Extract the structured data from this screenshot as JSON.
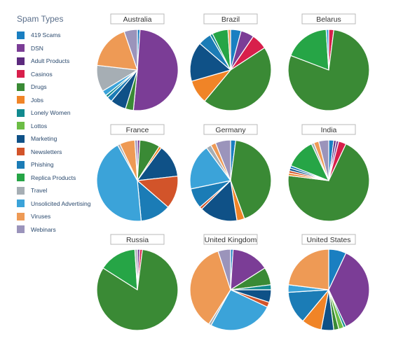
{
  "legend": {
    "title": "Spam Types",
    "items": [
      {
        "label": "419 Scams",
        "color": "#1a7fc1"
      },
      {
        "label": "DSN",
        "color": "#7b3d96"
      },
      {
        "label": "Adult Products",
        "color": "#5c2a7e"
      },
      {
        "label": "Casinos",
        "color": "#d81f4b"
      },
      {
        "label": "Drugs",
        "color": "#3a8a35"
      },
      {
        "label": "Jobs",
        "color": "#f08427"
      },
      {
        "label": "Lonely Women",
        "color": "#128a8f"
      },
      {
        "label": "Lottos",
        "color": "#6cbd45"
      },
      {
        "label": "Marketing",
        "color": "#0f5187"
      },
      {
        "label": "Newsletters",
        "color": "#d2542a"
      },
      {
        "label": "Phishing",
        "color": "#1b7cb6"
      },
      {
        "label": "Replica Products",
        "color": "#26a546"
      },
      {
        "label": "Travel",
        "color": "#a6aeb4"
      },
      {
        "label": "Unsolicited Advertising",
        "color": "#3ba3d9"
      },
      {
        "label": "Viruses",
        "color": "#ee9a55"
      },
      {
        "label": "Webinars",
        "color": "#9b94bb"
      }
    ]
  },
  "chart_data": [
    {
      "type": "pie",
      "title": "Australia",
      "slices": [
        {
          "label": "419 Scams",
          "value": 1
        },
        {
          "label": "DSN",
          "value": 48
        },
        {
          "label": "Drugs",
          "value": 3
        },
        {
          "label": "Marketing",
          "value": 6
        },
        {
          "label": "Phishing",
          "value": 2
        },
        {
          "label": "Lonely Women",
          "value": 1
        },
        {
          "label": "Unsolicited Advertising",
          "value": 2
        },
        {
          "label": "Travel",
          "value": 10
        },
        {
          "label": "Viruses",
          "value": 17
        },
        {
          "label": "Webinars",
          "value": 5
        }
      ]
    },
    {
      "type": "pie",
      "title": "Brazil",
      "slices": [
        {
          "label": "419 Scams",
          "value": 4
        },
        {
          "label": "DSN",
          "value": 5
        },
        {
          "label": "Casinos",
          "value": 6
        },
        {
          "label": "Drugs",
          "value": 43
        },
        {
          "label": "Jobs",
          "value": 9
        },
        {
          "label": "Marketing",
          "value": 15
        },
        {
          "label": "Phishing",
          "value": 5
        },
        {
          "label": "Lonely Women",
          "value": 1
        },
        {
          "label": "Replica Products",
          "value": 6
        },
        {
          "label": "Viruses",
          "value": 1
        }
      ]
    },
    {
      "type": "pie",
      "title": "Belarus",
      "slices": [
        {
          "label": "Casinos",
          "value": 2
        },
        {
          "label": "Drugs",
          "value": 78
        },
        {
          "label": "Replica Products",
          "value": 18
        },
        {
          "label": "Unsolicited Advertising",
          "value": 1
        }
      ]
    },
    {
      "type": "pie",
      "title": "France",
      "slices": [
        {
          "label": "DSN",
          "value": 1
        },
        {
          "label": "Drugs",
          "value": 8
        },
        {
          "label": "Jobs",
          "value": 1
        },
        {
          "label": "Marketing",
          "value": 13
        },
        {
          "label": "Newsletters",
          "value": 13
        },
        {
          "label": "Phishing",
          "value": 12
        },
        {
          "label": "Unsolicited Advertising",
          "value": 43
        },
        {
          "label": "Travel",
          "value": 1
        },
        {
          "label": "Viruses",
          "value": 6
        },
        {
          "label": "Webinars",
          "value": 1
        }
      ]
    },
    {
      "type": "pie",
      "title": "Germany",
      "slices": [
        {
          "label": "419 Scams",
          "value": 2
        },
        {
          "label": "Drugs",
          "value": 42
        },
        {
          "label": "Jobs",
          "value": 3
        },
        {
          "label": "Marketing",
          "value": 15
        },
        {
          "label": "Newsletters",
          "value": 1
        },
        {
          "label": "Phishing",
          "value": 8
        },
        {
          "label": "Unsolicited Advertising",
          "value": 18
        },
        {
          "label": "Travel",
          "value": 2
        },
        {
          "label": "Viruses",
          "value": 2
        },
        {
          "label": "Webinars",
          "value": 6
        }
      ]
    },
    {
      "type": "pie",
      "title": "India",
      "slices": [
        {
          "label": "419 Scams",
          "value": 2
        },
        {
          "label": "Adult Products",
          "value": 1
        },
        {
          "label": "DSN",
          "value": 1
        },
        {
          "label": "Casinos",
          "value": 3
        },
        {
          "label": "Drugs",
          "value": 70
        },
        {
          "label": "Jobs",
          "value": 1
        },
        {
          "label": "Newsletters",
          "value": 1
        },
        {
          "label": "Marketing",
          "value": 1
        },
        {
          "label": "Phishing",
          "value": 1
        },
        {
          "label": "Replica Products",
          "value": 12
        },
        {
          "label": "Travel",
          "value": 1
        },
        {
          "label": "Viruses",
          "value": 2
        },
        {
          "label": "Webinars",
          "value": 4
        }
      ]
    },
    {
      "type": "pie",
      "title": "Russia",
      "slices": [
        {
          "label": "DSN",
          "value": 1
        },
        {
          "label": "Casinos",
          "value": 1
        },
        {
          "label": "Drugs",
          "value": 82
        },
        {
          "label": "Replica Products",
          "value": 15
        },
        {
          "label": "Travel",
          "value": 1
        }
      ]
    },
    {
      "type": "pie",
      "title": "United Kingdom",
      "slices": [
        {
          "label": "419 Scams",
          "value": 1
        },
        {
          "label": "DSN",
          "value": 15
        },
        {
          "label": "Drugs",
          "value": 7
        },
        {
          "label": "Lonely Women",
          "value": 2
        },
        {
          "label": "Marketing",
          "value": 5
        },
        {
          "label": "Newsletters",
          "value": 2
        },
        {
          "label": "Unsolicited Advertising",
          "value": 26
        },
        {
          "label": "Travel",
          "value": 1
        },
        {
          "label": "Viruses",
          "value": 36
        },
        {
          "label": "Webinars",
          "value": 5
        }
      ]
    },
    {
      "type": "pie",
      "title": "United States",
      "slices": [
        {
          "label": "419 Scams",
          "value": 7
        },
        {
          "label": "DSN",
          "value": 36
        },
        {
          "label": "Lonely Women",
          "value": 1
        },
        {
          "label": "Lottos",
          "value": 2
        },
        {
          "label": "Drugs",
          "value": 2
        },
        {
          "label": "Marketing",
          "value": 5
        },
        {
          "label": "Jobs",
          "value": 8
        },
        {
          "label": "Phishing",
          "value": 13
        },
        {
          "label": "Unsolicited Advertising",
          "value": 3
        },
        {
          "label": "Viruses",
          "value": 23
        }
      ]
    }
  ]
}
